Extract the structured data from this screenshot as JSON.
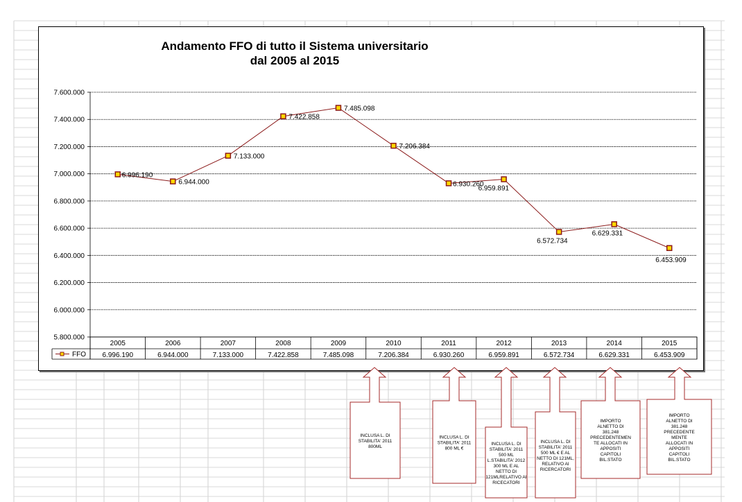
{
  "chart_data": {
    "type": "line",
    "title": "Andamento FFO di tutto il Sistema universitario",
    "subtitle": "dal 2005 al 2015",
    "categories": [
      "2005",
      "2006",
      "2007",
      "2008",
      "2009",
      "2010",
      "2011",
      "2012",
      "2013",
      "2014",
      "2015"
    ],
    "series": [
      {
        "name": "FFO",
        "values": [
          6996190,
          6944000,
          7133000,
          7422858,
          7485098,
          7206384,
          6930260,
          6959891,
          6572734,
          6629331,
          6453909
        ],
        "labels": [
          "6.996.190",
          "6.944.000",
          "7.133.000",
          "7.422.858",
          "7.485.098",
          "7.206.384",
          "6.930.260",
          "6.959.891",
          "6.572.734",
          "6.629.331",
          "6.453.909"
        ],
        "color": "#8b1a1a",
        "marker_color": "#ffd700"
      }
    ],
    "ylim": [
      5800000,
      7600000
    ],
    "yticks": [
      "5.800.000",
      "6.000.000",
      "6.200.000",
      "6.400.000",
      "6.600.000",
      "6.800.000",
      "7.000.000",
      "7.200.000",
      "7.400.000",
      "7.600.000"
    ],
    "grid": true,
    "data_table": true
  },
  "annotations": [
    {
      "year": "2010",
      "text": "INCLUSA  L. DI\nSTABILITA' 2011\n800ML"
    },
    {
      "year": "2011",
      "text": "INCLUSA  L. DI\nSTABILITA' 2011\n800 ML €"
    },
    {
      "year": "2012",
      "text": "INCLUSA  L. DI\nSTABILITA'  2011\n500 ML\nL.STABILITA' 2012\n300 ML E AL\nNETTO  DI\n121MLRELATIVO AI\nRICECATORI"
    },
    {
      "year": "2013",
      "text": "INCLUSA  L. DI\nSTABILITA'  2011\n500 ML € E AL\nNETTO  DI 121ML,\nRELATIVO AI\nRICERCATORI"
    },
    {
      "year": "2014",
      "text": "IMPORTO\nALNETTO DI\n381.248\nPRECEDENTEMEN\nTE ALLOCATI IN\nAPPOSITI\nCAPITOLI\nBIL.STATO"
    },
    {
      "year": "2015",
      "text": "IMPORTO\nALNETTO DI\n381.248\nPRECEDENTE\nMENTE\nALLOCATI IN\nAPPOSITI\nCAPITOLI\nBIL.STATO"
    }
  ]
}
